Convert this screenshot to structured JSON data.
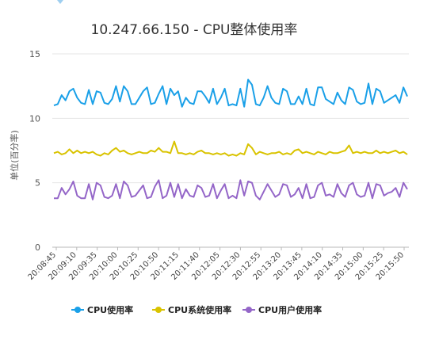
{
  "chart_data": {
    "type": "line",
    "title": "10.247.66.150 - CPU整体使用率",
    "xlabel": "",
    "ylabel": "单位(百分率)",
    "ylim": [
      0,
      15
    ],
    "yticks": [
      0,
      5,
      10,
      15
    ],
    "grid": "horizontal",
    "legend_position": "bottom",
    "x_tick_labels": [
      "20:08:45",
      "20:09:10",
      "20:09:35",
      "20:10:00",
      "20:10:25",
      "20:10:50",
      "20:11:15",
      "20:11:40",
      "20:12:05",
      "20:12:30",
      "20:12:55",
      "20:13:20",
      "20:13:45",
      "20:14:10",
      "20:14:35",
      "20:15:00",
      "20:15:25",
      "20:15:50"
    ],
    "series": [
      {
        "name": "CPU使用率",
        "color": "#1aa0e8",
        "values": [
          11.0,
          11.1,
          11.8,
          11.4,
          12.1,
          12.3,
          11.6,
          11.2,
          11.1,
          12.2,
          11.1,
          12.1,
          12.0,
          11.2,
          11.1,
          11.5,
          12.5,
          11.3,
          12.5,
          12.1,
          11.1,
          11.1,
          11.6,
          12.1,
          12.4,
          11.1,
          11.2,
          11.9,
          12.5,
          11.1,
          12.3,
          11.8,
          12.1,
          10.9,
          11.6,
          11.2,
          11.1,
          12.1,
          12.1,
          11.7,
          11.2,
          12.3,
          11.1,
          11.6,
          12.3,
          11.0,
          11.1,
          11.0,
          12.3,
          10.9,
          13.0,
          12.6,
          11.1,
          11.0,
          11.6,
          12.5,
          11.6,
          11.2,
          11.1,
          12.3,
          12.1,
          11.1,
          11.1,
          11.7,
          11.1,
          12.3,
          11.1,
          11.0,
          12.4,
          12.4,
          11.5,
          11.3,
          11.1,
          12.0,
          11.4,
          11.1,
          12.4,
          12.2,
          11.3,
          11.1,
          11.2,
          12.7,
          11.1,
          12.3,
          12.1,
          11.2,
          11.4,
          11.6,
          11.8,
          11.2,
          12.4,
          11.7
        ]
      },
      {
        "name": "CPU系统使用率",
        "color": "#d9c300",
        "values": [
          7.3,
          7.4,
          7.2,
          7.3,
          7.6,
          7.3,
          7.5,
          7.3,
          7.4,
          7.3,
          7.4,
          7.2,
          7.1,
          7.3,
          7.2,
          7.5,
          7.7,
          7.4,
          7.5,
          7.3,
          7.2,
          7.3,
          7.4,
          7.3,
          7.3,
          7.5,
          7.4,
          7.7,
          7.4,
          7.4,
          7.3,
          8.2,
          7.3,
          7.3,
          7.2,
          7.3,
          7.2,
          7.4,
          7.5,
          7.3,
          7.3,
          7.2,
          7.3,
          7.2,
          7.3,
          7.1,
          7.2,
          7.1,
          7.3,
          7.2,
          8.0,
          7.7,
          7.2,
          7.4,
          7.3,
          7.2,
          7.3,
          7.3,
          7.4,
          7.2,
          7.3,
          7.2,
          7.5,
          7.6,
          7.3,
          7.4,
          7.3,
          7.2,
          7.4,
          7.3,
          7.2,
          7.4,
          7.3,
          7.3,
          7.4,
          7.5,
          7.9,
          7.3,
          7.4,
          7.3,
          7.4,
          7.3,
          7.3,
          7.5,
          7.3,
          7.4,
          7.3,
          7.4,
          7.5,
          7.3,
          7.4,
          7.2
        ]
      },
      {
        "name": "CPU用户使用率",
        "color": "#9466c8",
        "values": [
          3.8,
          3.8,
          4.6,
          4.1,
          4.5,
          5.1,
          4.0,
          3.8,
          3.8,
          4.9,
          3.7,
          5.0,
          4.8,
          3.9,
          3.8,
          4.0,
          4.9,
          3.8,
          5.1,
          4.8,
          3.9,
          4.0,
          4.4,
          4.8,
          3.8,
          3.9,
          4.7,
          5.2,
          3.8,
          4.0,
          5.0,
          3.9,
          4.9,
          3.8,
          4.5,
          4.0,
          3.9,
          4.8,
          4.6,
          3.9,
          4.0,
          4.9,
          3.8,
          4.4,
          4.9,
          3.8,
          4.0,
          3.8,
          5.2,
          4.0,
          5.1,
          5.0,
          4.0,
          3.7,
          4.3,
          4.9,
          4.4,
          3.9,
          4.1,
          4.9,
          4.8,
          3.9,
          4.1,
          4.6,
          3.8,
          4.9,
          3.8,
          3.9,
          4.8,
          5.0,
          4.0,
          4.1,
          3.9,
          4.9,
          4.2,
          3.9,
          4.8,
          5.0,
          4.1,
          3.9,
          4.0,
          5.0,
          3.8,
          4.9,
          4.8,
          4.0,
          4.2,
          4.3,
          4.6,
          3.9,
          5.0,
          4.5
        ]
      }
    ]
  }
}
